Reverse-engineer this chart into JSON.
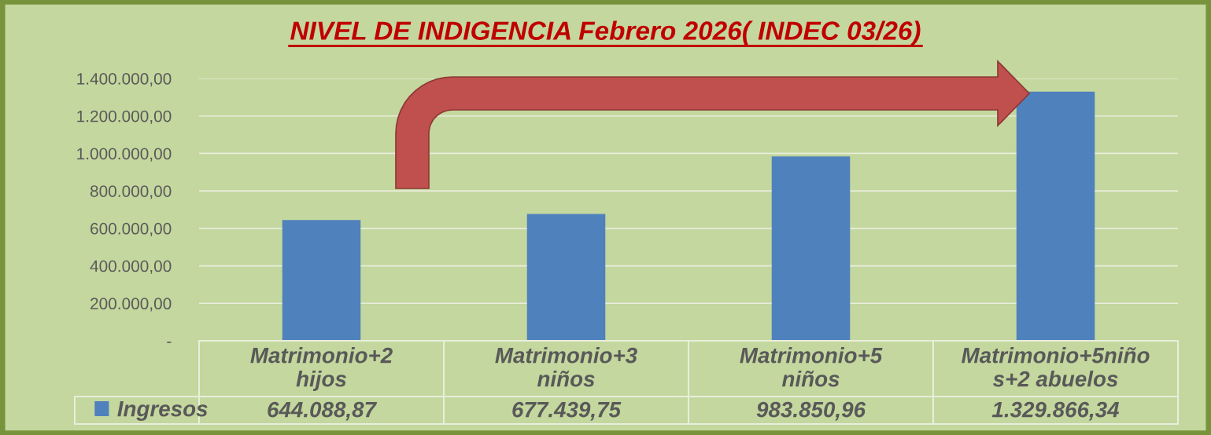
{
  "chart_data": {
    "type": "bar",
    "title": "NIVEL DE INDIGENCIA Febrero 2026( INDEC 03/26)",
    "categories": [
      "Matrimonio+2\nhijos",
      "Matrimonio+3\nniños",
      "Matrimonio+5\nniños",
      "Matrimonio+5niño\ns+2 abuelos"
    ],
    "series": [
      {
        "name": "Ingresos",
        "color": "#4f81bd",
        "values": [
          644088.87,
          677439.75,
          983850.96,
          1329866.34
        ],
        "value_labels": [
          "644.088,87",
          "677.439,75",
          "983.850,96",
          "1.329.866,34"
        ]
      }
    ],
    "ylim": [
      0,
      1400000
    ],
    "yticks": [
      {
        "value": 0,
        "label": "-"
      },
      {
        "value": 200000,
        "label": "200.000,00"
      },
      {
        "value": 400000,
        "label": "400.000,00"
      },
      {
        "value": 600000,
        "label": "600.000,00"
      },
      {
        "value": 800000,
        "label": "800.000,00"
      },
      {
        "value": 1000000,
        "label": "1.000.000,00"
      },
      {
        "value": 1200000,
        "label": "1.200.000,00"
      },
      {
        "value": 1400000,
        "label": "1.400.000,00"
      }
    ],
    "grid": "y",
    "legend": "bottom left"
  }
}
